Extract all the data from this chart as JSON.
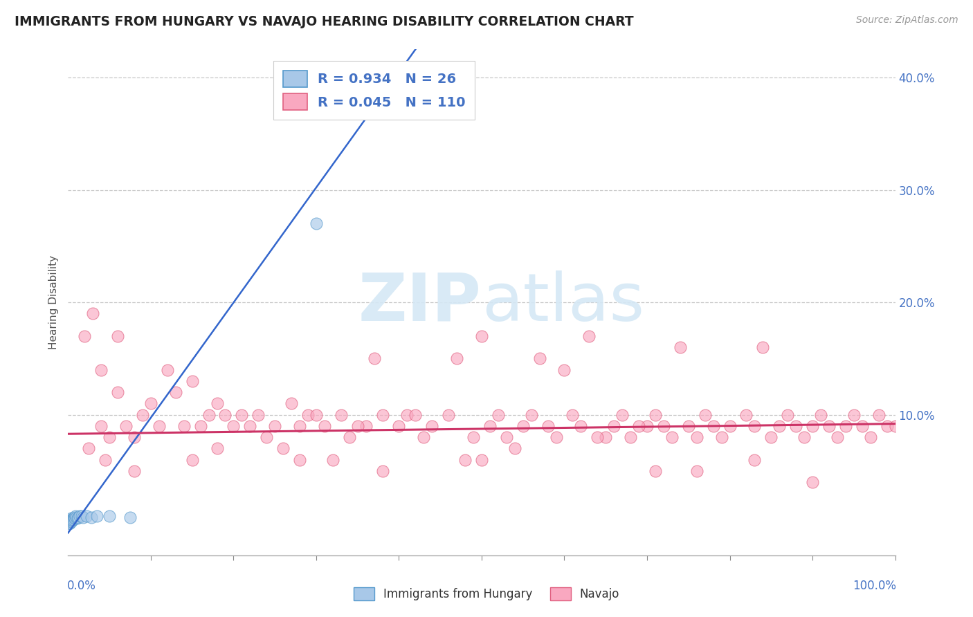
{
  "title": "IMMIGRANTS FROM HUNGARY VS NAVAJO HEARING DISABILITY CORRELATION CHART",
  "source": "Source: ZipAtlas.com",
  "ylabel": "Hearing Disability",
  "xlim": [
    0.0,
    1.0
  ],
  "ylim": [
    -0.025,
    0.425
  ],
  "blue_R": 0.934,
  "blue_N": 26,
  "pink_R": 0.045,
  "pink_N": 110,
  "blue_color": "#a8c8e8",
  "blue_edge": "#5599cc",
  "pink_color": "#f9a8c0",
  "pink_edge": "#e06080",
  "blue_line_color": "#3366cc",
  "pink_line_color": "#cc3366",
  "background_color": "#ffffff",
  "grid_color": "#cccccc",
  "title_color": "#222222",
  "tick_color": "#4472c4",
  "watermark_color": "#d5e8f5",
  "blue_points_x": [
    0.001,
    0.002,
    0.002,
    0.003,
    0.003,
    0.004,
    0.004,
    0.005,
    0.005,
    0.006,
    0.006,
    0.007,
    0.008,
    0.009,
    0.01,
    0.011,
    0.012,
    0.014,
    0.016,
    0.018,
    0.022,
    0.028,
    0.035,
    0.05,
    0.075,
    0.3
  ],
  "blue_points_y": [
    0.003,
    0.005,
    0.004,
    0.006,
    0.007,
    0.005,
    0.008,
    0.007,
    0.006,
    0.008,
    0.007,
    0.009,
    0.008,
    0.01,
    0.009,
    0.008,
    0.009,
    0.01,
    0.01,
    0.009,
    0.01,
    0.009,
    0.01,
    0.01,
    0.009,
    0.27
  ],
  "blue_line_x0": 0.0,
  "blue_line_x1": 0.42,
  "blue_line_y0": -0.005,
  "blue_line_y1": 0.425,
  "pink_line_x0": 0.0,
  "pink_line_x1": 1.0,
  "pink_line_y0": 0.083,
  "pink_line_y1": 0.092,
  "pink_points_x": [
    0.02,
    0.03,
    0.04,
    0.04,
    0.05,
    0.06,
    0.06,
    0.07,
    0.08,
    0.09,
    0.1,
    0.11,
    0.12,
    0.13,
    0.14,
    0.15,
    0.16,
    0.17,
    0.18,
    0.19,
    0.2,
    0.21,
    0.22,
    0.23,
    0.24,
    0.25,
    0.27,
    0.28,
    0.29,
    0.3,
    0.31,
    0.33,
    0.34,
    0.36,
    0.37,
    0.38,
    0.4,
    0.41,
    0.43,
    0.44,
    0.46,
    0.47,
    0.49,
    0.5,
    0.51,
    0.52,
    0.53,
    0.55,
    0.56,
    0.58,
    0.59,
    0.61,
    0.62,
    0.63,
    0.65,
    0.66,
    0.67,
    0.68,
    0.7,
    0.71,
    0.72,
    0.73,
    0.74,
    0.75,
    0.76,
    0.77,
    0.78,
    0.79,
    0.8,
    0.82,
    0.83,
    0.84,
    0.85,
    0.86,
    0.87,
    0.88,
    0.89,
    0.9,
    0.91,
    0.92,
    0.93,
    0.94,
    0.95,
    0.96,
    0.97,
    0.98,
    0.99,
    1.0,
    0.5,
    0.6,
    0.64,
    0.69,
    0.57,
    0.42,
    0.35,
    0.26,
    0.15,
    0.08,
    0.045,
    0.025,
    0.32,
    0.54,
    0.71,
    0.83,
    0.9,
    0.76,
    0.48,
    0.38,
    0.28,
    0.18
  ],
  "pink_points_y": [
    0.17,
    0.19,
    0.09,
    0.14,
    0.08,
    0.17,
    0.12,
    0.09,
    0.08,
    0.1,
    0.11,
    0.09,
    0.14,
    0.12,
    0.09,
    0.13,
    0.09,
    0.1,
    0.11,
    0.1,
    0.09,
    0.1,
    0.09,
    0.1,
    0.08,
    0.09,
    0.11,
    0.09,
    0.1,
    0.1,
    0.09,
    0.1,
    0.08,
    0.09,
    0.15,
    0.1,
    0.09,
    0.1,
    0.08,
    0.09,
    0.1,
    0.15,
    0.08,
    0.06,
    0.09,
    0.1,
    0.08,
    0.09,
    0.1,
    0.09,
    0.08,
    0.1,
    0.09,
    0.17,
    0.08,
    0.09,
    0.1,
    0.08,
    0.09,
    0.1,
    0.09,
    0.08,
    0.16,
    0.09,
    0.08,
    0.1,
    0.09,
    0.08,
    0.09,
    0.1,
    0.09,
    0.16,
    0.08,
    0.09,
    0.1,
    0.09,
    0.08,
    0.09,
    0.1,
    0.09,
    0.08,
    0.09,
    0.1,
    0.09,
    0.08,
    0.1,
    0.09,
    0.09,
    0.17,
    0.14,
    0.08,
    0.09,
    0.15,
    0.1,
    0.09,
    0.07,
    0.06,
    0.05,
    0.06,
    0.07,
    0.06,
    0.07,
    0.05,
    0.06,
    0.04,
    0.05,
    0.06,
    0.05,
    0.06,
    0.07
  ]
}
